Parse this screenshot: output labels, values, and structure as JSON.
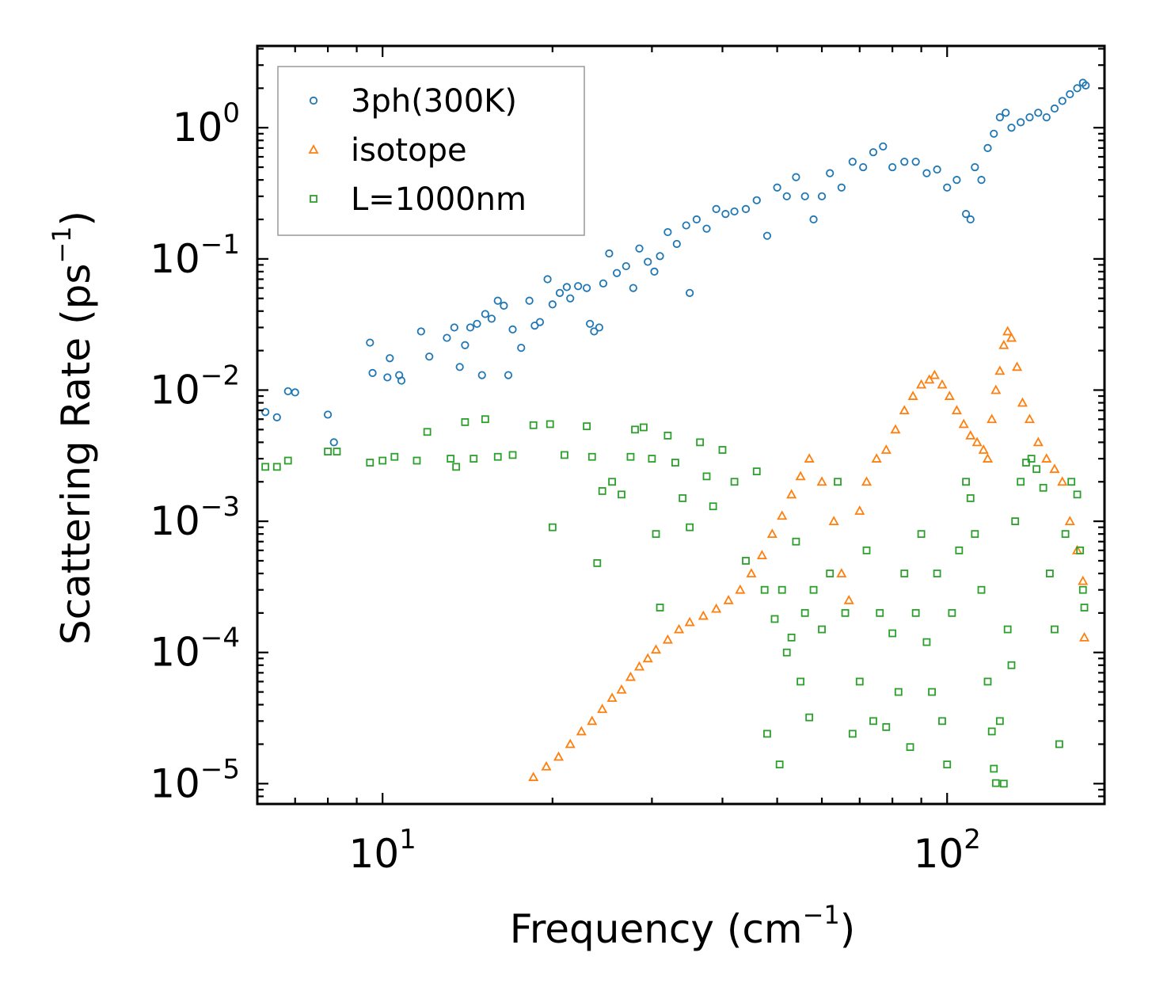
{
  "chart_data": {
    "type": "scatter",
    "xscale": "log",
    "yscale": "log",
    "xlim": [
      6.0,
      190.0
    ],
    "ylim": [
      7e-06,
      4.2
    ],
    "xlabel": "Frequency (cm",
    "xlabel_unit_exp": "−1",
    "xlabel_close": ")",
    "ylabel": "Scattering Rate (ps",
    "ylabel_unit_exp": "−1",
    "ylabel_close": ")",
    "xticks": [
      {
        "value": 10,
        "base": "10",
        "exp": "1"
      },
      {
        "value": 100,
        "base": "10",
        "exp": "2"
      }
    ],
    "yticks": [
      {
        "value": 1,
        "base": "10",
        "exp": "0"
      },
      {
        "value": 0.1,
        "base": "10",
        "exp": "−1"
      },
      {
        "value": 0.01,
        "base": "10",
        "exp": "−2"
      },
      {
        "value": 0.001,
        "base": "10",
        "exp": "−3"
      },
      {
        "value": 0.0001,
        "base": "10",
        "exp": "−4"
      },
      {
        "value": 1e-05,
        "base": "10",
        "exp": "−5"
      }
    ],
    "legend_position": "top-left",
    "series": [
      {
        "name": "3ph(300K)",
        "marker": "circle",
        "color": "#1f77b4",
        "points": [
          [
            6.2,
            0.0068
          ],
          [
            6.5,
            0.0062
          ],
          [
            6.8,
            0.0098
          ],
          [
            7.0,
            0.0096
          ],
          [
            8.0,
            0.0065
          ],
          [
            8.2,
            0.004
          ],
          [
            9.5,
            0.023
          ],
          [
            9.6,
            0.0135
          ],
          [
            10.2,
            0.0125
          ],
          [
            10.3,
            0.0175
          ],
          [
            10.7,
            0.013
          ],
          [
            10.8,
            0.0118
          ],
          [
            11.7,
            0.028
          ],
          [
            12.1,
            0.018
          ],
          [
            13.0,
            0.025
          ],
          [
            13.4,
            0.03
          ],
          [
            13.7,
            0.015
          ],
          [
            14.0,
            0.022
          ],
          [
            14.3,
            0.03
          ],
          [
            14.7,
            0.032
          ],
          [
            15.0,
            0.013
          ],
          [
            15.2,
            0.038
          ],
          [
            15.6,
            0.035
          ],
          [
            16.0,
            0.048
          ],
          [
            16.4,
            0.044
          ],
          [
            16.7,
            0.013
          ],
          [
            17.0,
            0.029
          ],
          [
            17.6,
            0.021
          ],
          [
            18.2,
            0.048
          ],
          [
            18.6,
            0.031
          ],
          [
            19.0,
            0.033
          ],
          [
            19.6,
            0.07
          ],
          [
            20.0,
            0.045
          ],
          [
            20.6,
            0.055
          ],
          [
            21.2,
            0.061
          ],
          [
            21.5,
            0.05
          ],
          [
            22.2,
            0.062
          ],
          [
            23.0,
            0.06
          ],
          [
            23.3,
            0.032
          ],
          [
            23.7,
            0.028
          ],
          [
            24.2,
            0.03
          ],
          [
            24.6,
            0.065
          ],
          [
            25.2,
            0.11
          ],
          [
            26.0,
            0.078
          ],
          [
            27.0,
            0.088
          ],
          [
            27.8,
            0.06
          ],
          [
            28.5,
            0.12
          ],
          [
            29.5,
            0.095
          ],
          [
            30.3,
            0.08
          ],
          [
            31.0,
            0.105
          ],
          [
            32.0,
            0.16
          ],
          [
            33.2,
            0.13
          ],
          [
            34.5,
            0.18
          ],
          [
            35.0,
            0.055
          ],
          [
            36.0,
            0.2
          ],
          [
            37.5,
            0.17
          ],
          [
            39.0,
            0.24
          ],
          [
            40.5,
            0.22
          ],
          [
            42.0,
            0.23
          ],
          [
            44.0,
            0.24
          ],
          [
            46.0,
            0.28
          ],
          [
            48.0,
            0.15
          ],
          [
            50.0,
            0.35
          ],
          [
            52.0,
            0.3
          ],
          [
            54.0,
            0.42
          ],
          [
            56.0,
            0.3
          ],
          [
            58.0,
            0.2
          ],
          [
            60.0,
            0.3
          ],
          [
            62.0,
            0.45
          ],
          [
            65.0,
            0.35
          ],
          [
            68.0,
            0.55
          ],
          [
            71.0,
            0.5
          ],
          [
            74.0,
            0.65
          ],
          [
            77.0,
            0.72
          ],
          [
            80.0,
            0.5
          ],
          [
            84.0,
            0.55
          ],
          [
            88.0,
            0.55
          ],
          [
            92.0,
            0.45
          ],
          [
            96.0,
            0.48
          ],
          [
            100.0,
            0.35
          ],
          [
            104.0,
            0.4
          ],
          [
            108.0,
            0.22
          ],
          [
            110.0,
            0.2
          ],
          [
            112.0,
            0.5
          ],
          [
            115.0,
            0.4
          ],
          [
            118.0,
            0.7
          ],
          [
            121.0,
            0.9
          ],
          [
            124.0,
            1.2
          ],
          [
            127.0,
            1.3
          ],
          [
            130.0,
            1.0
          ],
          [
            135.0,
            1.1
          ],
          [
            140.0,
            1.2
          ],
          [
            145.0,
            1.3
          ],
          [
            150.0,
            1.2
          ],
          [
            155.0,
            1.4
          ],
          [
            160.0,
            1.6
          ],
          [
            165.0,
            1.8
          ],
          [
            170.0,
            2.0
          ],
          [
            174.0,
            2.2
          ],
          [
            176.0,
            2.1
          ]
        ]
      },
      {
        "name": "isotope",
        "marker": "triangle",
        "color": "#ff7f0e",
        "points": [
          [
            18.5,
            1.12e-05
          ],
          [
            19.5,
            1.35e-05
          ],
          [
            20.5,
            1.6e-05
          ],
          [
            21.5,
            2e-05
          ],
          [
            22.5,
            2.5e-05
          ],
          [
            23.5,
            3e-05
          ],
          [
            24.5,
            3.7e-05
          ],
          [
            25.5,
            4.5e-05
          ],
          [
            26.5,
            5.2e-05
          ],
          [
            27.5,
            6.5e-05
          ],
          [
            28.5,
            7.8e-05
          ],
          [
            29.5,
            9e-05
          ],
          [
            30.5,
            0.000105
          ],
          [
            32.0,
            0.000125
          ],
          [
            33.5,
            0.00015
          ],
          [
            35.0,
            0.00017
          ],
          [
            37.0,
            0.00019
          ],
          [
            39.0,
            0.000215
          ],
          [
            41.0,
            0.00025
          ],
          [
            43.0,
            0.0003
          ],
          [
            45.0,
            0.0004
          ],
          [
            47.0,
            0.00055
          ],
          [
            49.0,
            0.0008
          ],
          [
            51.0,
            0.0011
          ],
          [
            53.0,
            0.0016
          ],
          [
            55.0,
            0.0022
          ],
          [
            57.0,
            0.003
          ],
          [
            60.0,
            0.002
          ],
          [
            63.0,
            0.001
          ],
          [
            65.0,
            0.0004
          ],
          [
            67.0,
            0.00025
          ],
          [
            70.0,
            0.0012
          ],
          [
            72.0,
            0.002
          ],
          [
            75.0,
            0.003
          ],
          [
            78.0,
            0.0035
          ],
          [
            81.0,
            0.005
          ],
          [
            84.0,
            0.007
          ],
          [
            87.0,
            0.009
          ],
          [
            90.0,
            0.011
          ],
          [
            93.0,
            0.012
          ],
          [
            95.0,
            0.013
          ],
          [
            98.0,
            0.011
          ],
          [
            101.0,
            0.009
          ],
          [
            104.0,
            0.007
          ],
          [
            107.0,
            0.0055
          ],
          [
            110.0,
            0.0045
          ],
          [
            113.0,
            0.004
          ],
          [
            116.0,
            0.0035
          ],
          [
            118.0,
            0.003
          ],
          [
            120.0,
            0.006
          ],
          [
            122.0,
            0.01
          ],
          [
            124.0,
            0.014
          ],
          [
            126.0,
            0.022
          ],
          [
            128.0,
            0.028
          ],
          [
            130.0,
            0.025
          ],
          [
            133.0,
            0.015
          ],
          [
            136.0,
            0.008
          ],
          [
            140.0,
            0.006
          ],
          [
            145.0,
            0.004
          ],
          [
            150.0,
            0.003
          ],
          [
            155.0,
            0.0025
          ],
          [
            160.0,
            0.002
          ],
          [
            165.0,
            0.001
          ],
          [
            170.0,
            0.0006
          ],
          [
            174.0,
            0.00035
          ],
          [
            175.0,
            0.00013
          ]
        ]
      },
      {
        "name": "L=1000nm",
        "marker": "square",
        "color": "#2ca02c",
        "points": [
          [
            6.2,
            0.0026
          ],
          [
            6.5,
            0.0026
          ],
          [
            6.8,
            0.0029
          ],
          [
            8.0,
            0.0034
          ],
          [
            8.3,
            0.0034
          ],
          [
            9.5,
            0.0028
          ],
          [
            10.0,
            0.0029
          ],
          [
            10.5,
            0.0031
          ],
          [
            11.5,
            0.0029
          ],
          [
            12.0,
            0.0048
          ],
          [
            13.2,
            0.003
          ],
          [
            13.5,
            0.0026
          ],
          [
            14.0,
            0.0057
          ],
          [
            14.5,
            0.003
          ],
          [
            15.2,
            0.006
          ],
          [
            16.0,
            0.0031
          ],
          [
            17.0,
            0.0032
          ],
          [
            18.5,
            0.0054
          ],
          [
            19.8,
            0.0055
          ],
          [
            20.0,
            0.0009
          ],
          [
            21.0,
            0.0032
          ],
          [
            23.0,
            0.0053
          ],
          [
            23.5,
            0.0031
          ],
          [
            24.0,
            0.00048
          ],
          [
            24.5,
            0.0017
          ],
          [
            25.5,
            0.002
          ],
          [
            26.5,
            0.0016
          ],
          [
            27.5,
            0.0031
          ],
          [
            28.0,
            0.005
          ],
          [
            29.0,
            0.0052
          ],
          [
            30.0,
            0.003
          ],
          [
            30.5,
            0.0008
          ],
          [
            31.0,
            0.00022
          ],
          [
            32.0,
            0.0045
          ],
          [
            33.0,
            0.0028
          ],
          [
            34.0,
            0.0015
          ],
          [
            35.0,
            0.0009
          ],
          [
            36.5,
            0.004
          ],
          [
            37.5,
            0.0022
          ],
          [
            38.5,
            0.0013
          ],
          [
            40.0,
            0.0035
          ],
          [
            42.0,
            0.002
          ],
          [
            44.0,
            0.0005
          ],
          [
            46.0,
            0.0024
          ],
          [
            47.5,
            0.0003
          ],
          [
            48.0,
            2.4e-05
          ],
          [
            49.5,
            0.00018
          ],
          [
            50.5,
            1.4e-05
          ],
          [
            51.0,
            0.0003
          ],
          [
            52.0,
            0.0001
          ],
          [
            53.0,
            0.00013
          ],
          [
            54.0,
            0.0007
          ],
          [
            55.0,
            6e-05
          ],
          [
            56.0,
            0.0002
          ],
          [
            57.0,
            3.2e-05
          ],
          [
            58.0,
            0.0003
          ],
          [
            60.0,
            0.00015
          ],
          [
            62.0,
            0.0004
          ],
          [
            64.0,
            0.002
          ],
          [
            66.0,
            0.0002
          ],
          [
            68.0,
            2.4e-05
          ],
          [
            70.0,
            6e-05
          ],
          [
            72.0,
            0.0006
          ],
          [
            74.0,
            3e-05
          ],
          [
            76.0,
            0.0002
          ],
          [
            78.0,
            2.7e-05
          ],
          [
            80.0,
            0.00014
          ],
          [
            82.0,
            5e-05
          ],
          [
            84.0,
            0.0004
          ],
          [
            86.0,
            1.9e-05
          ],
          [
            88.0,
            0.0002
          ],
          [
            90.0,
            0.0008
          ],
          [
            92.0,
            0.00012
          ],
          [
            94.0,
            5e-05
          ],
          [
            96.0,
            0.0004
          ],
          [
            98.0,
            3e-05
          ],
          [
            100.0,
            1.4e-05
          ],
          [
            102.0,
            0.0002
          ],
          [
            105.0,
            0.0006
          ],
          [
            108.0,
            0.002
          ],
          [
            110.0,
            0.0015
          ],
          [
            112.0,
            0.0008
          ],
          [
            115.0,
            0.0003
          ],
          [
            118.0,
            6e-05
          ],
          [
            120.0,
            2.5e-05
          ],
          [
            121.0,
            1.3e-05
          ],
          [
            122.0,
            1.01e-05
          ],
          [
            124.0,
            3e-05
          ],
          [
            126.0,
            1e-05
          ],
          [
            128.0,
            0.00015
          ],
          [
            130.0,
            8e-05
          ],
          [
            132.0,
            0.001
          ],
          [
            135.0,
            0.002
          ],
          [
            138.0,
            0.0028
          ],
          [
            141.0,
            0.003
          ],
          [
            144.0,
            0.0025
          ],
          [
            148.0,
            0.0018
          ],
          [
            152.0,
            0.0004
          ],
          [
            155.0,
            0.00015
          ],
          [
            158.0,
            2e-05
          ],
          [
            162.0,
            0.0008
          ],
          [
            166.0,
            0.002
          ],
          [
            170.0,
            0.0016
          ],
          [
            172.0,
            0.0006
          ],
          [
            174.0,
            0.0003
          ],
          [
            175.0,
            0.00022
          ]
        ]
      }
    ]
  }
}
